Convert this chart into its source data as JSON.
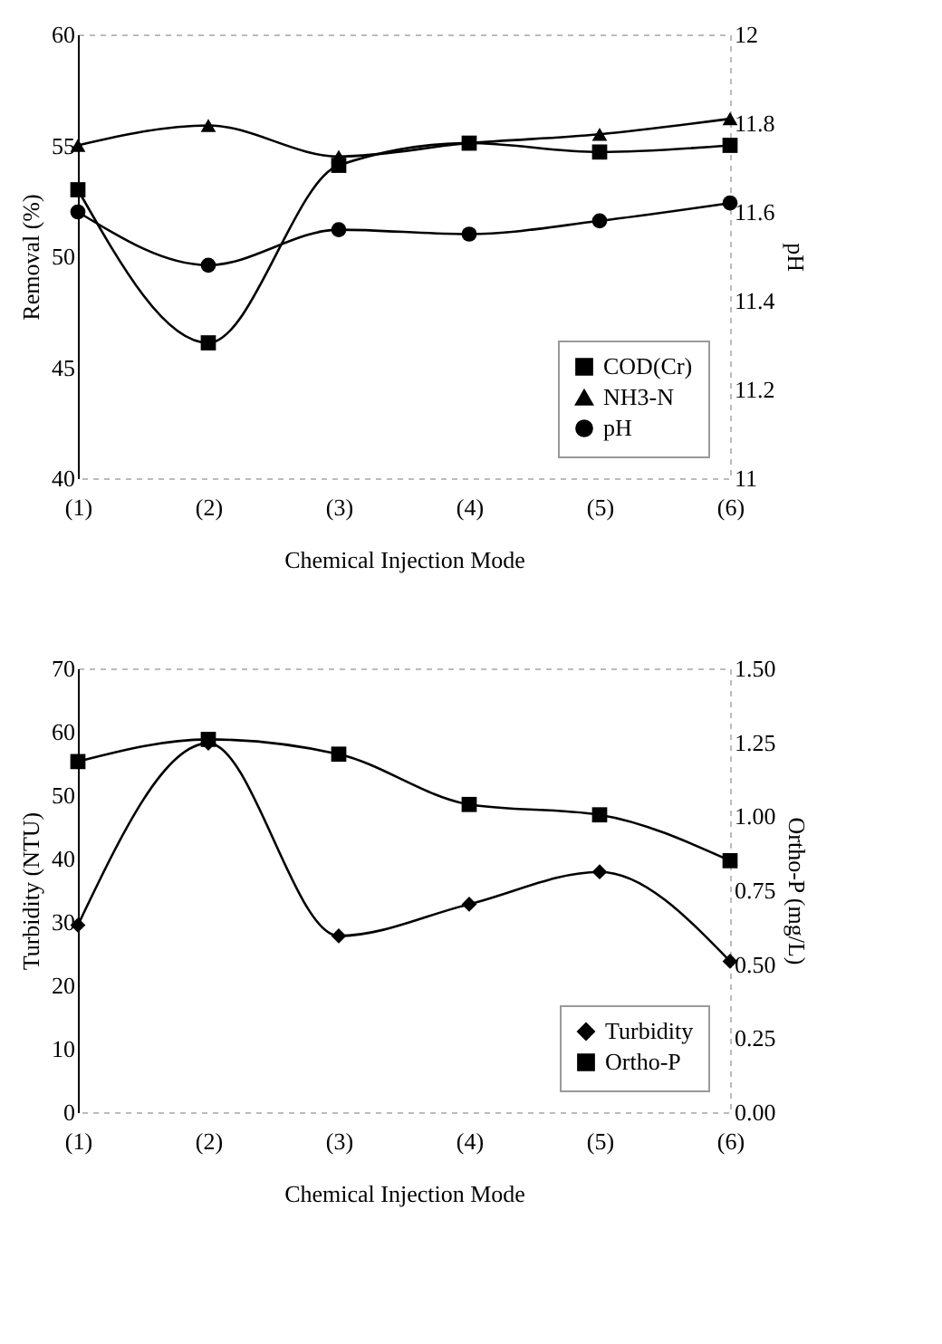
{
  "chart_data": [
    {
      "type": "line",
      "xlabel": "Chemical Injection Mode",
      "ylabel": "Removal (%)",
      "y2label": "pH",
      "categories": [
        "(1)",
        "(2)",
        "(3)",
        "(4)",
        "(5)",
        "(6)"
      ],
      "ylim": [
        40,
        60
      ],
      "yticks": [
        40,
        45,
        50,
        55,
        60
      ],
      "y2lim": [
        11,
        12
      ],
      "y2ticks": [
        11,
        11.2,
        11.4,
        11.6,
        11.8,
        12
      ],
      "legend": "bottom right",
      "series": [
        {
          "name": "COD(Cr)",
          "color": "#000000",
          "marker": "square",
          "values": [
            53,
            46.1,
            54.1,
            55.1,
            54.7,
            55
          ]
        },
        {
          "name": "NH3-N",
          "color": "#000000",
          "marker": "triangle",
          "values": [
            55,
            55.9,
            54.5,
            55.1,
            55.5,
            56.2
          ]
        },
        {
          "name": "pH",
          "color": "#000000",
          "marker": "circle",
          "axis": "y2",
          "values": [
            11.6,
            11.48,
            11.56,
            11.55,
            11.58,
            11.62
          ]
        }
      ]
    },
    {
      "type": "line",
      "xlabel": "Chemical Injection Mode",
      "ylabel": "Turbidity (NTU)",
      "y2label": "Ortho-P (mg/L)",
      "categories": [
        "(1)",
        "(2)",
        "(3)",
        "(4)",
        "(5)",
        "(6)"
      ],
      "ylim": [
        0,
        70
      ],
      "yticks": [
        0,
        10,
        20,
        30,
        40,
        50,
        60,
        70
      ],
      "y2lim": [
        0,
        1.5
      ],
      "y2ticks": [
        {
          "value": 0,
          "label": "0.00"
        },
        {
          "value": 0.25,
          "label": "0.25"
        },
        {
          "value": 0.5,
          "label": "0.50"
        },
        {
          "value": 0.75,
          "label": "0.75"
        },
        {
          "value": 1,
          "label": "1.00"
        },
        {
          "value": 1.25,
          "label": "1.25"
        },
        {
          "value": 1.5,
          "label": "1.50"
        }
      ],
      "legend": "bottom right",
      "series": [
        {
          "name": "Turbidity",
          "color": "#000000",
          "marker": "diamond",
          "values": [
            29.5,
            58.2,
            27.8,
            32.8,
            37.9,
            23.8
          ]
        },
        {
          "name": "Ortho-P",
          "color": "#000000",
          "marker": "square",
          "axis": "y2",
          "values": [
            1.185,
            1.26,
            1.21,
            1.04,
            1.005,
            0.85
          ]
        }
      ]
    }
  ]
}
